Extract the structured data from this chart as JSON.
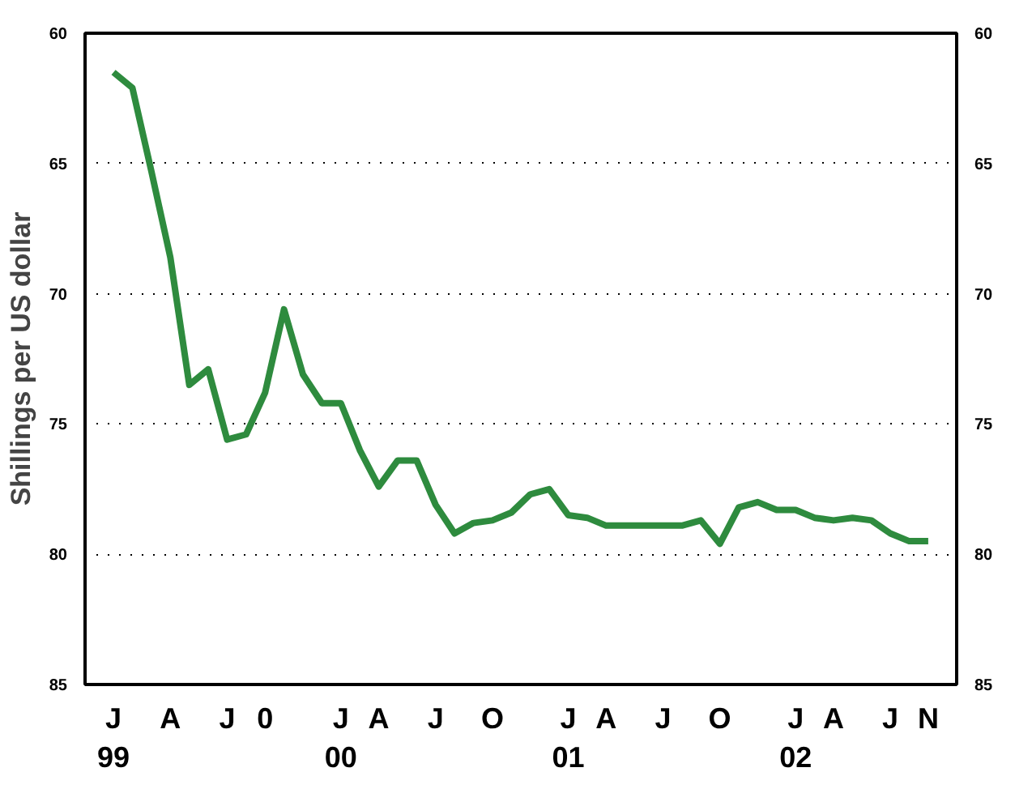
{
  "chart_data": {
    "type": "line",
    "ylabel": "Shillings per US dollar",
    "categories": [
      "J\n99",
      null,
      null,
      "A",
      null,
      null,
      "J",
      null,
      "0",
      null,
      null,
      null,
      "J\n00",
      null,
      "A",
      null,
      null,
      "J",
      null,
      null,
      "O",
      null,
      null,
      null,
      "J\n01",
      null,
      "A",
      null,
      null,
      "J",
      null,
      null,
      "O",
      null,
      null,
      null,
      "J\n02",
      null,
      "A",
      null,
      null,
      "J",
      null,
      "N"
    ],
    "series": [
      {
        "color": "#2e8b3e",
        "values": [
          61.5,
          62.1,
          65.3,
          68.6,
          73.5,
          72.9,
          75.6,
          75.4,
          73.8,
          70.6,
          73.1,
          74.2,
          74.2,
          76.0,
          77.4,
          76.4,
          76.4,
          78.1,
          79.2,
          78.8,
          78.7,
          78.4,
          77.7,
          77.5,
          78.5,
          78.6,
          78.9,
          78.9,
          78.9,
          78.9,
          78.9,
          78.7,
          79.6,
          78.2,
          78.0,
          78.3,
          78.3,
          78.6,
          78.7,
          78.6,
          78.7,
          79.2,
          79.5,
          79.5
        ]
      }
    ],
    "ylim": [
      85,
      60
    ],
    "yticks": [
      60,
      65,
      70,
      75,
      80,
      85
    ],
    "y2lim": [
      85,
      60
    ],
    "y2ticks": [
      60,
      65,
      70,
      75,
      80,
      85
    ],
    "grid": "y",
    "marker": "none",
    "line_style": "solid"
  }
}
